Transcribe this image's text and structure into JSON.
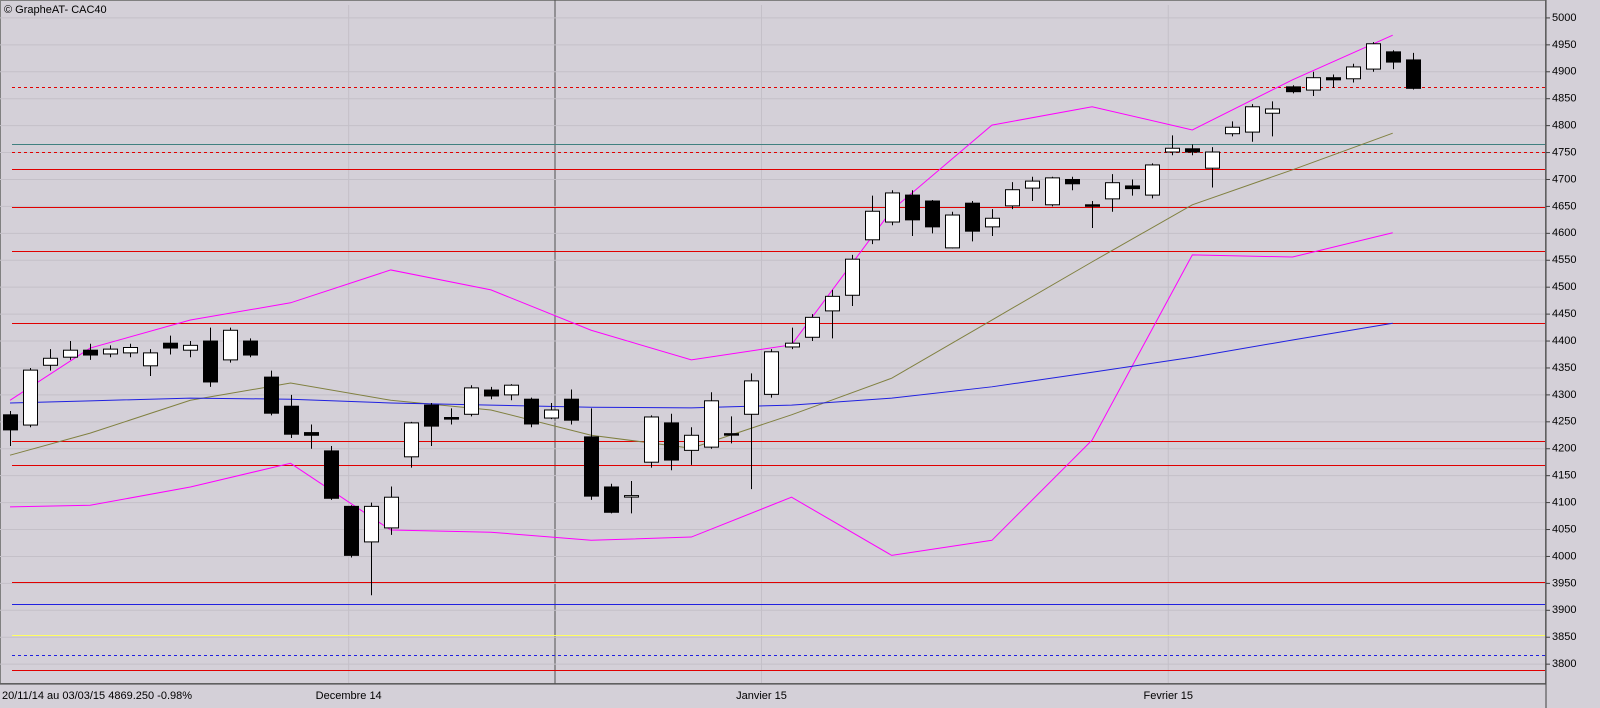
{
  "chart_data": {
    "type": "candlestick",
    "title": "© GrapheAT- CAC40",
    "footer": "20/11/14 au 03/03/15  4869.250  -0.98%",
    "up_color": "#ffffff",
    "down_color": "#000000",
    "open": [
      4263,
      4244,
      4355,
      4370,
      4383,
      4376,
      4378,
      4354,
      4396,
      4383,
      4400,
      4365,
      4400,
      4333,
      4279,
      4230,
      4196,
      4093,
      4027,
      4053,
      4185,
      4281,
      4258,
      4264,
      4309,
      4300,
      4292,
      4257,
      4292,
      4222,
      4129,
      4112,
      4175,
      4248,
      4197,
      4203,
      4228,
      4264,
      4301,
      4389,
      4407,
      4456,
      4485,
      4588,
      4621,
      4671,
      4660,
      4573,
      4656,
      4612,
      4651,
      4684,
      4653,
      4700,
      4653,
      4664,
      4688,
      4671,
      4751,
      4757,
      4721,
      4785,
      4788,
      4823,
      4872,
      4866,
      4889,
      4887,
      4905,
      4937,
      4922
    ],
    "high": [
      4270,
      4350,
      4385,
      4400,
      4395,
      4392,
      4395,
      4385,
      4410,
      4400,
      4425,
      4425,
      4405,
      4345,
      4300,
      4245,
      4205,
      4095,
      4100,
      4130,
      4250,
      4285,
      4275,
      4318,
      4315,
      4320,
      4295,
      4285,
      4310,
      4275,
      4135,
      4140,
      4262,
      4265,
      4240,
      4305,
      4260,
      4340,
      4385,
      4425,
      4450,
      4495,
      4560,
      4670,
      4680,
      4680,
      4662,
      4640,
      4660,
      4645,
      4695,
      4705,
      4705,
      4705,
      4660,
      4710,
      4700,
      4730,
      4782,
      4765,
      4760,
      4808,
      4840,
      4845,
      4875,
      4900,
      4895,
      4915,
      4955,
      4940,
      4935
    ],
    "low": [
      4205,
      4240,
      4345,
      4365,
      4365,
      4370,
      4370,
      4335,
      4375,
      4370,
      4315,
      4360,
      4370,
      4262,
      4220,
      4200,
      4105,
      3998,
      3928,
      4040,
      4165,
      4205,
      4245,
      4260,
      4292,
      4290,
      4240,
      4255,
      4245,
      4105,
      4080,
      4080,
      4165,
      4160,
      4170,
      4200,
      4210,
      4125,
      4295,
      4385,
      4400,
      4405,
      4465,
      4580,
      4615,
      4595,
      4600,
      4572,
      4585,
      4595,
      4645,
      4660,
      4650,
      4680,
      4610,
      4640,
      4670,
      4665,
      4745,
      4745,
      4685,
      4780,
      4770,
      4780,
      4860,
      4855,
      4870,
      4880,
      4900,
      4905,
      4867
    ],
    "close": [
      4235,
      4346,
      4368,
      4383,
      4374,
      4385,
      4388,
      4378,
      4387,
      4392,
      4324,
      4420,
      4374,
      4266,
      4227,
      4225,
      4108,
      4002,
      4093,
      4110,
      4248,
      4242,
      4255,
      4313,
      4298,
      4318,
      4246,
      4272,
      4253,
      4112,
      4082,
      4113,
      4259,
      4179,
      4225,
      4289,
      4226,
      4326,
      4380,
      4396,
      4444,
      4483,
      4552,
      4641,
      4675,
      4625,
      4612,
      4634,
      4604,
      4628,
      4681,
      4697,
      4703,
      4692,
      4652,
      4694,
      4683,
      4727,
      4758,
      4751,
      4751,
      4797,
      4835,
      4831,
      4863,
      4889,
      4885,
      4909,
      4952,
      4918,
      4869.25
    ],
    "lines": [
      {
        "color": "#ff00ff",
        "x": [
          0,
          4,
          9,
          14,
          19,
          24,
          29,
          34,
          39,
          44,
          49,
          54,
          59,
          64,
          69
        ],
        "values": [
          4290,
          4387,
          4439,
          4471,
          4532,
          4495,
          4420,
          4365,
          4393,
          4643,
          4801,
          4835,
          4792,
          4885,
          4968
        ]
      },
      {
        "color": "#808040",
        "x": [
          0,
          4,
          9,
          14,
          19,
          24,
          29,
          34,
          39,
          44,
          49,
          54,
          59,
          64,
          69
        ],
        "values": [
          4188,
          4229,
          4290,
          4322,
          4290,
          4272,
          4225,
          4201,
          4263,
          4331,
          4439,
          4547,
          4653,
          4718,
          4786
        ]
      },
      {
        "color": "#ff00ff",
        "x": [
          0,
          4,
          9,
          14,
          19,
          24,
          29,
          34,
          39,
          44,
          49,
          54,
          59,
          64,
          69
        ],
        "values": [
          4092,
          4095,
          4129,
          4173,
          4049,
          4045,
          4030,
          4036,
          4110,
          4002,
          4030,
          4216,
          4560,
          4556,
          4601
        ]
      },
      {
        "color": "#2020e0",
        "x": [
          0,
          4,
          9,
          14,
          19,
          24,
          29,
          34,
          39,
          44,
          49,
          54,
          59,
          64,
          69
        ],
        "values": [
          4285,
          4289,
          4294,
          4292,
          4285,
          4281,
          4277,
          4276,
          4281,
          4294,
          4315,
          4342,
          4370,
          4402,
          4433
        ]
      }
    ],
    "levels": [
      {
        "value": 4872,
        "color": "#e00000",
        "dashed": true
      },
      {
        "value": 4766,
        "color": "#408080",
        "dashed": false
      },
      {
        "value": 4751,
        "color": "#e00000",
        "dashed": true
      },
      {
        "value": 4720,
        "color": "#e00000",
        "dashed": false
      },
      {
        "value": 4649,
        "color": "#e00000",
        "dashed": false
      },
      {
        "value": 4567,
        "color": "#e00000",
        "dashed": false
      },
      {
        "value": 4433,
        "color": "#e00000",
        "dashed": false
      },
      {
        "value": 4214,
        "color": "#e00000",
        "dashed": false
      },
      {
        "value": 4170,
        "color": "#e00000",
        "dashed": false
      },
      {
        "value": 3952,
        "color": "#e00000",
        "dashed": false
      },
      {
        "value": 3911,
        "color": "#2020e0",
        "dashed": false
      },
      {
        "value": 3854,
        "color": "#ffff60",
        "dashed": false
      },
      {
        "value": 3817,
        "color": "#2020e0",
        "dashed": true
      },
      {
        "value": 3789,
        "color": "#e00000",
        "dashed": false
      }
    ],
    "xlim": [
      -0.5,
      76.6
    ],
    "xticks": [
      {
        "value": 16.9,
        "label": "Decembre 14"
      },
      {
        "value": 37.5,
        "label": "Janvier 15"
      },
      {
        "value": 57.8,
        "label": "Fevrier 15"
      }
    ],
    "ylim": [
      3765,
      5024
    ],
    "yticks": [
      3800,
      3850,
      3900,
      3950,
      4000,
      4050,
      4100,
      4150,
      4200,
      4250,
      4300,
      4350,
      4400,
      4450,
      4500,
      4550,
      4600,
      4650,
      4700,
      4750,
      4800,
      4850,
      4900,
      4950,
      5000
    ],
    "grid": true
  }
}
